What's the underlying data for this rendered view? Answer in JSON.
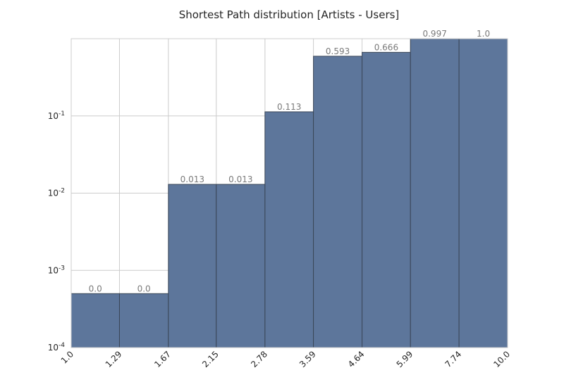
{
  "chart_data": {
    "type": "bar",
    "title": "Shortest Path distribution [Artists - Users]",
    "xlabel": "",
    "ylabel": "",
    "x_scale": "log",
    "y_scale": "log",
    "bin_edges": [
      "1.0",
      "1.29",
      "1.67",
      "2.15",
      "2.78",
      "3.59",
      "4.64",
      "5.99",
      "7.74",
      "10.0"
    ],
    "values": [
      0.0005,
      0.0005,
      0.013,
      0.013,
      0.113,
      0.593,
      0.666,
      0.997,
      1.0
    ],
    "value_labels": [
      "0.0",
      "0.0",
      "0.013",
      "0.013",
      "0.113",
      "0.593",
      "0.666",
      "0.997",
      "1.0"
    ],
    "ylim": [
      0.0001,
      1.0
    ],
    "y_ticks": [
      {
        "value": 0.1,
        "base": "10",
        "exp": "-1"
      },
      {
        "value": 0.01,
        "base": "10",
        "exp": "-2"
      },
      {
        "value": 0.001,
        "base": "10",
        "exp": "-3"
      },
      {
        "value": 0.0001,
        "base": "10",
        "exp": "-4"
      }
    ],
    "grid": true,
    "bar_color": "#5d769b",
    "bar_edge_color": "#3a4657"
  }
}
